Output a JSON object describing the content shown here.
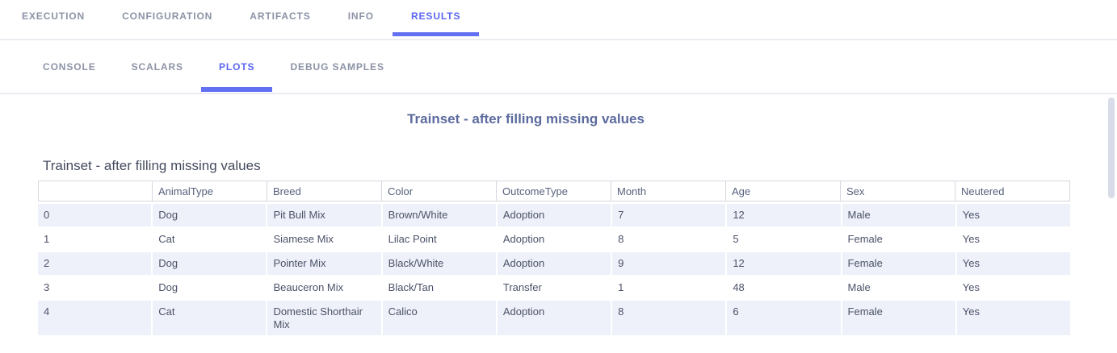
{
  "nav": {
    "primary_tabs": [
      {
        "label": "EXECUTION",
        "active": false
      },
      {
        "label": "CONFIGURATION",
        "active": false
      },
      {
        "label": "ARTIFACTS",
        "active": false
      },
      {
        "label": "INFO",
        "active": false
      },
      {
        "label": "RESULTS",
        "active": true
      }
    ],
    "secondary_tabs": [
      {
        "label": "CONSOLE",
        "active": false
      },
      {
        "label": "SCALARS",
        "active": false
      },
      {
        "label": "PLOTS",
        "active": true
      },
      {
        "label": "DEBUG SAMPLES",
        "active": false
      }
    ]
  },
  "plot": {
    "title": "Trainset - after filling missing values",
    "table_title": "Trainset - after filling missing values",
    "columns": [
      "",
      "AnimalType",
      "Breed",
      "Color",
      "OutcomeType",
      "Month",
      "Age",
      "Sex",
      "Neutered"
    ],
    "rows": [
      [
        "0",
        "Dog",
        "Pit Bull Mix",
        "Brown/White",
        "Adoption",
        "7",
        "12",
        "Male",
        "Yes"
      ],
      [
        "1",
        "Cat",
        "Siamese Mix",
        "Lilac Point",
        "Adoption",
        "8",
        "5",
        "Female",
        "Yes"
      ],
      [
        "2",
        "Dog",
        "Pointer Mix",
        "Black/White",
        "Adoption",
        "9",
        "12",
        "Female",
        "Yes"
      ],
      [
        "3",
        "Dog",
        "Beauceron Mix",
        "Black/Tan",
        "Transfer",
        "1",
        "48",
        "Male",
        "Yes"
      ],
      [
        "4",
        "Cat",
        "Domestic Shorthair Mix",
        "Calico",
        "Adoption",
        "8",
        "6",
        "Female",
        "Yes"
      ]
    ]
  },
  "colors": {
    "accent_blue": "#5a65f1",
    "active_underline": "#6470f2",
    "tab_inactive_text": "#8c93a6",
    "divider": "#ebecf1",
    "plot_title_text": "#5c6b9d",
    "table_title_text": "#454b5e",
    "table_text": "#4c5268",
    "header_border": "#d7d8e0",
    "row_alt_background": "#eef1fa",
    "scrollbar_thumb": "#d8dce9"
  }
}
